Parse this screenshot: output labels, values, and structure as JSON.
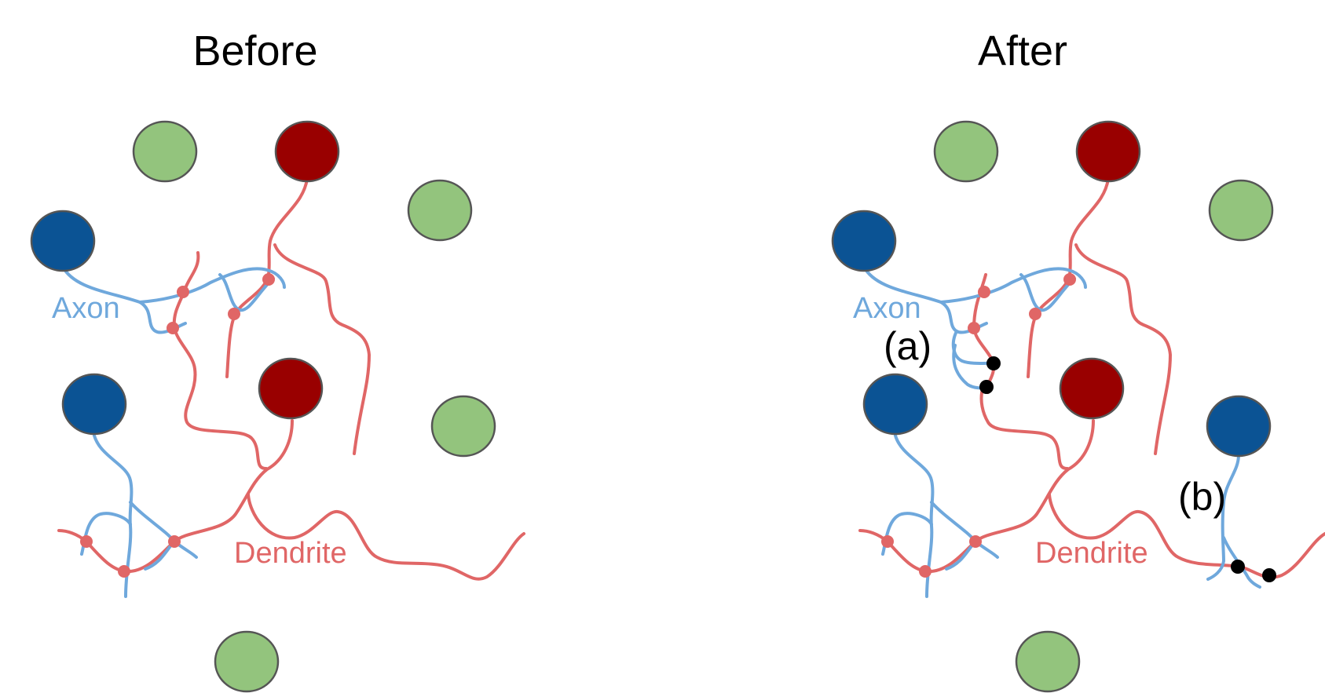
{
  "colors": {
    "axon": "#6fa8dc",
    "dendrite": "#e06666",
    "synapse_existing": "#e06666",
    "synapse_new": "#000000",
    "neuron_excitatory": "#990000",
    "neuron_inhibitory": "#0b5394",
    "glia": "#93c47d"
  },
  "panels": {
    "before": {
      "title": "Before",
      "axon_label": "Axon",
      "dendrite_label": "Dendrite"
    },
    "after": {
      "title": "After",
      "axon_label": "Axon",
      "dendrite_label": "Dendrite",
      "marker_a": "(a)",
      "marker_b": "(b)"
    }
  }
}
